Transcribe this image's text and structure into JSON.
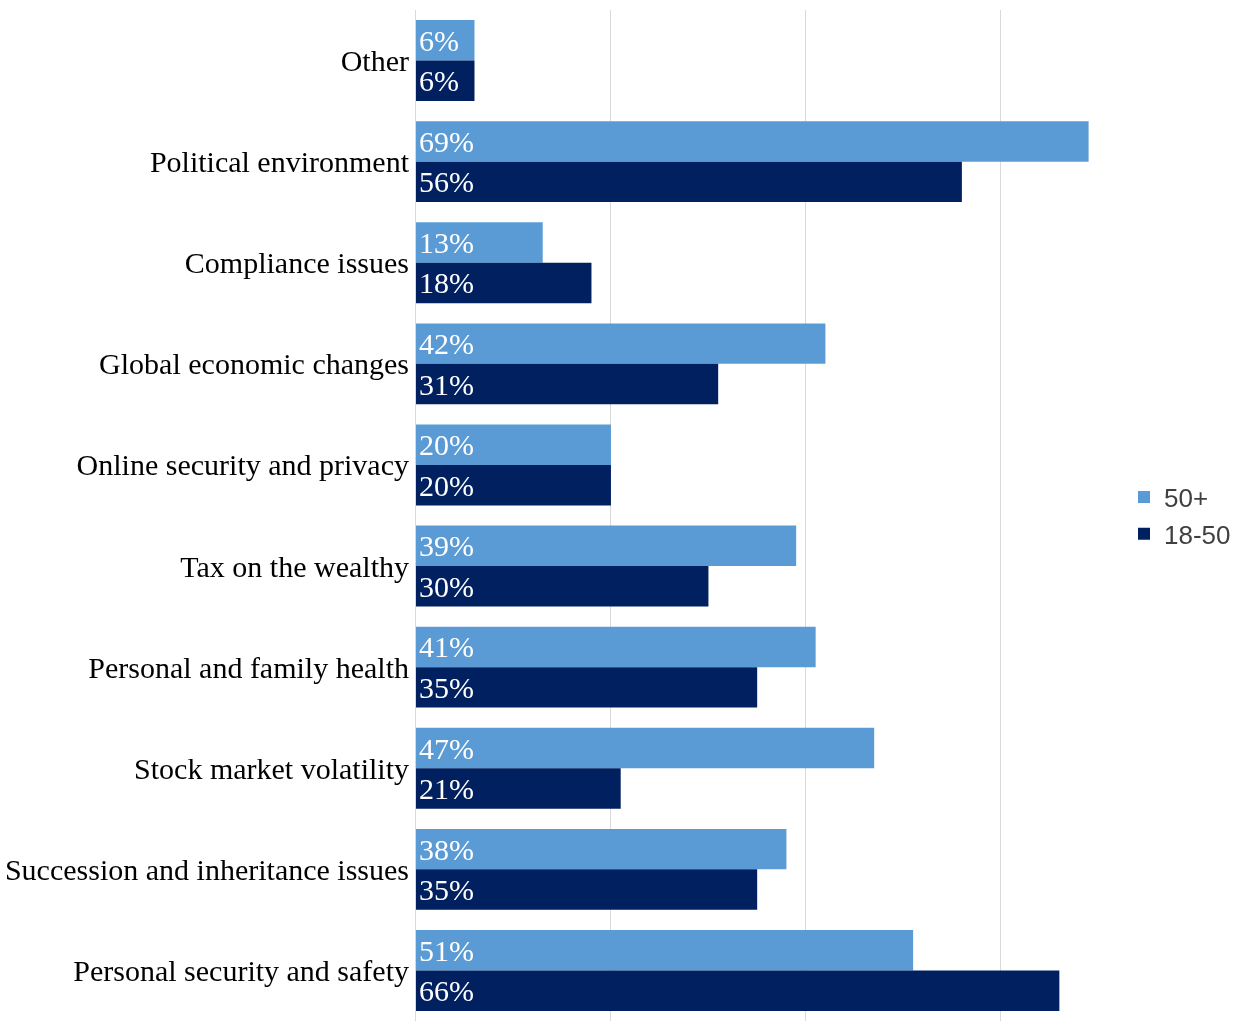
{
  "chart_data": {
    "type": "bar",
    "orientation": "horizontal",
    "categories": [
      "Other",
      "Political environment",
      "Compliance issues",
      "Global economic changes",
      "Online security and privacy",
      "Tax on the wealthy",
      "Personal and family health",
      "Stock market volatility",
      "Succession and inheritance issues",
      "Personal security and safety"
    ],
    "series": [
      {
        "name": "50+",
        "color": "#5b9bd5",
        "values": [
          6,
          69,
          13,
          42,
          20,
          39,
          41,
          47,
          38,
          51
        ],
        "value_labels": [
          "6%",
          "69%",
          "13%",
          "42%",
          "20%",
          "39%",
          "41%",
          "47%",
          "38%",
          "51%"
        ]
      },
      {
        "name": "18-50",
        "color": "#002060",
        "values": [
          6,
          56,
          18,
          31,
          20,
          30,
          35,
          21,
          35,
          66
        ],
        "value_labels": [
          "6%",
          "56%",
          "18%",
          "31%",
          "20%",
          "30%",
          "35%",
          "21%",
          "35%",
          "66%"
        ]
      }
    ],
    "xticks": [
      {
        "value": 0,
        "label": null
      },
      {
        "value": 20,
        "label": null
      },
      {
        "value": 40,
        "label": null
      },
      {
        "value": 60,
        "label": null
      }
    ],
    "tick_labels": "y",
    "grid": "x",
    "legend": "right"
  }
}
